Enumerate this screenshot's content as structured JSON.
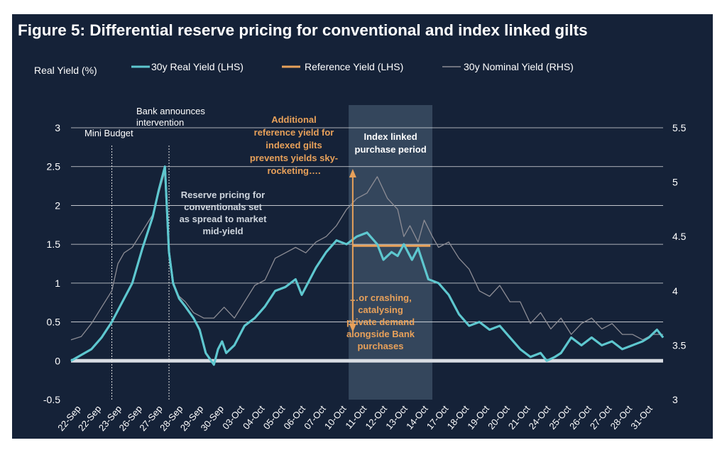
{
  "title": "Figure 5:  Differential reserve pricing for conventional and index linked gilts",
  "colors": {
    "background": "#152238",
    "real_yield": "#5ec7cf",
    "reference": "#e8a15a",
    "nominal": "#8d8d95",
    "zero_line": "#d9dde3",
    "grid": "#ffffff",
    "orange_text": "#e8a15a",
    "shade": "#3a4c63"
  },
  "chart_data": {
    "type": "line",
    "ylabel_left": "Real Yield (%)",
    "left_ylim": [
      -0.5,
      3
    ],
    "right_ylim": [
      3,
      5.5
    ],
    "left_ticks": [
      "-0.5",
      "0",
      "0.5",
      "1",
      "1.5",
      "2",
      "2.5",
      "3"
    ],
    "right_ticks": [
      "3",
      "3.5",
      "4",
      "4.5",
      "5",
      "5.5"
    ],
    "x_tick_labels": [
      "22-Sep",
      "22-Sep",
      "23-Sep",
      "26-Sep",
      "27-Sep",
      "28-Sep",
      "29-Sep",
      "30-Sep",
      "03-Oct",
      "04-Oct",
      "05-Oct",
      "06-Oct",
      "07-Oct",
      "10-Oct",
      "11-Oct",
      "12-Oct",
      "13-Oct",
      "14-Oct",
      "17-Oct",
      "18-Oct",
      "19-Oct",
      "20-Oct",
      "21-Oct",
      "24-Oct",
      "25-Oct",
      "26-Oct",
      "27-Oct",
      "28-Oct",
      "31-Oct"
    ],
    "x_range": [
      0,
      29
    ],
    "legend": [
      {
        "name": "30y Real Yield (LHS)",
        "color": "#5ec7cf"
      },
      {
        "name": "Reference Yield (LHS)",
        "color": "#e8a15a"
      },
      {
        "name": "30y Nominal Yield (RHS)",
        "color": "#8d8d95"
      }
    ],
    "series": [
      {
        "name": "30y Real Yield (LHS)",
        "axis": "left",
        "x": [
          0,
          1,
          1.5,
          2,
          2.5,
          3,
          3.5,
          4,
          4.3,
          4.6,
          4.8,
          5,
          5.3,
          5.6,
          6,
          6.3,
          6.6,
          7,
          7.2,
          7.4,
          7.6,
          8,
          8.5,
          9,
          9.5,
          10,
          10.5,
          11,
          11.3,
          11.7,
          12,
          12.5,
          13,
          13.5,
          14,
          14.5,
          15,
          15.3,
          15.7,
          16,
          16.3,
          16.7,
          17,
          17.5,
          18,
          18.5,
          19,
          19.5,
          20,
          20.5,
          21,
          21.5,
          22,
          22.5,
          23,
          23.3,
          23.7,
          24,
          24.5,
          25,
          25.5,
          26,
          26.5,
          27,
          27.5,
          28,
          28.3,
          28.7,
          29
        ],
        "values": [
          0,
          0.15,
          0.3,
          0.5,
          0.75,
          1,
          1.45,
          1.85,
          2.2,
          2.5,
          1.4,
          1.0,
          0.8,
          0.7,
          0.55,
          0.4,
          0.1,
          -0.05,
          0.15,
          0.25,
          0.1,
          0.2,
          0.45,
          0.55,
          0.7,
          0.9,
          0.95,
          1.05,
          0.85,
          1.05,
          1.2,
          1.4,
          1.55,
          1.5,
          1.6,
          1.65,
          1.5,
          1.3,
          1.4,
          1.35,
          1.5,
          1.3,
          1.45,
          1.05,
          1.0,
          0.85,
          0.6,
          0.45,
          0.5,
          0.4,
          0.45,
          0.3,
          0.15,
          0.05,
          0.1,
          0.0,
          0.05,
          0.1,
          0.3,
          0.2,
          0.3,
          0.2,
          0.25,
          0.15,
          0.2,
          0.25,
          0.3,
          0.4,
          0.3
        ]
      },
      {
        "name": "Reference Yield (LHS)",
        "axis": "left",
        "x": [
          13.8,
          17.6
        ],
        "values": [
          1.48,
          1.48
        ]
      },
      {
        "name": "30y Nominal Yield (RHS)",
        "axis": "right",
        "x": [
          0,
          0.5,
          1,
          1.5,
          2,
          2.3,
          2.6,
          3,
          3.5,
          4,
          4.3,
          4.6,
          4.8,
          5,
          5.3,
          5.6,
          6,
          6.5,
          7,
          7.5,
          8,
          8.5,
          9,
          9.5,
          10,
          10.5,
          11,
          11.5,
          12,
          12.5,
          13,
          13.5,
          14,
          14.5,
          15,
          15.5,
          16,
          16.3,
          16.6,
          17,
          17.3,
          17.7,
          18,
          18.5,
          19,
          19.5,
          20,
          20.5,
          21,
          21.5,
          22,
          22.5,
          23,
          23.5,
          24,
          24.5,
          25,
          25.5,
          26,
          26.5,
          27,
          27.5,
          28,
          28.5,
          29
        ],
        "values": [
          3.55,
          3.58,
          3.7,
          3.85,
          4.0,
          4.25,
          4.35,
          4.4,
          4.55,
          4.7,
          4.9,
          5.1,
          4.4,
          4.05,
          3.95,
          3.9,
          3.8,
          3.75,
          3.75,
          3.85,
          3.75,
          3.9,
          4.05,
          4.1,
          4.3,
          4.35,
          4.4,
          4.35,
          4.45,
          4.5,
          4.6,
          4.75,
          4.85,
          4.9,
          5.05,
          4.85,
          4.75,
          4.5,
          4.6,
          4.45,
          4.65,
          4.5,
          4.4,
          4.45,
          4.3,
          4.2,
          4.0,
          3.95,
          4.05,
          3.9,
          3.9,
          3.7,
          3.8,
          3.65,
          3.75,
          3.6,
          3.7,
          3.75,
          3.65,
          3.7,
          3.6,
          3.6,
          3.55,
          3.6,
          3.6
        ]
      }
    ],
    "shaded_region": {
      "label": "Index linked purchase period",
      "x_start": 13.6,
      "x_end": 17.7
    },
    "vlines": [
      {
        "label": "Mini Budget",
        "x": 2
      },
      {
        "label": "Bank announces intervention",
        "x": 4.8
      }
    ],
    "annotations": {
      "bank_line1": "Bank announces",
      "bank_line2": "intervention",
      "mini_budget": "Mini Budget",
      "index_linked": [
        "Index linked",
        "purchase period"
      ],
      "additional_ref": [
        "Additional",
        "reference yield for",
        "indexed gilts",
        "prevents yields sky-",
        "rocketing…."
      ],
      "reserve_pricing": [
        "Reserve pricing for",
        "conventionals set",
        "as spread to market",
        "mid-yield"
      ],
      "crashing": [
        "…or crashing,",
        "catalysing",
        "private demand",
        "alongside Bank",
        "purchases"
      ]
    },
    "grid": true
  }
}
